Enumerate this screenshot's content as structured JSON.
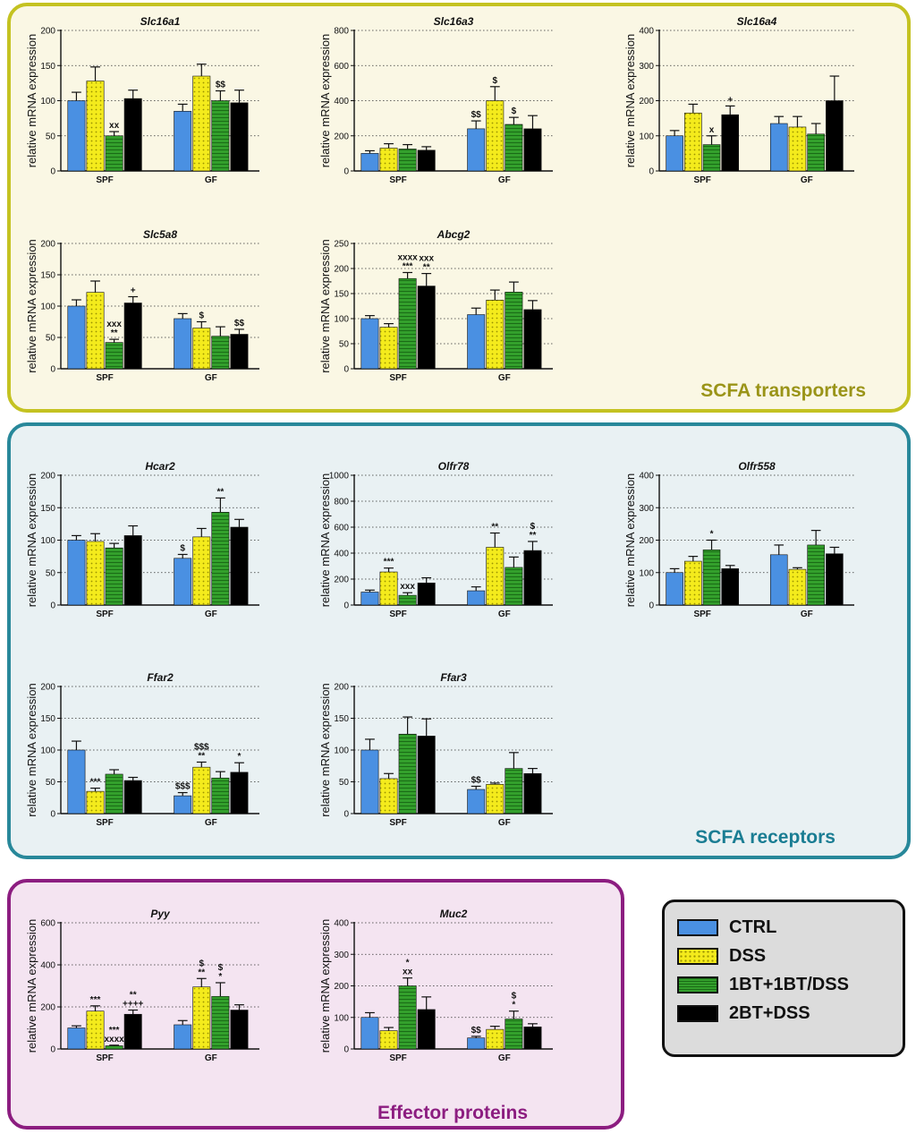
{
  "groups": [
    {
      "label": "SCFA transporters",
      "color": "#c4c221"
    },
    {
      "label": "SCFA receptors",
      "color": "#28889a"
    },
    {
      "label": "Effector proteins",
      "color": "#8c1d80"
    }
  ],
  "legend": [
    {
      "label": "CTRL",
      "color": "#4a90e2",
      "pattern": "solid"
    },
    {
      "label": "DSS",
      "color": "#f4eb1c",
      "pattern": "dots"
    },
    {
      "label": "1BT+1BT/DSS",
      "color": "#33a02c",
      "pattern": "stripes"
    },
    {
      "label": "2BT+DSS",
      "color": "#000000",
      "pattern": "solid"
    }
  ],
  "chart_data": [
    {
      "type": "bar",
      "title": "Slc16a1",
      "ylabel": "relative mRNA expression",
      "ylim": [
        0,
        200
      ],
      "yticks": [
        0,
        50,
        100,
        150,
        200
      ],
      "categories": [
        "SPF",
        "GF"
      ],
      "series": [
        {
          "name": "CTRL",
          "values": [
            100,
            85
          ],
          "errors": [
            12,
            10
          ],
          "annotations": [
            "",
            ""
          ]
        },
        {
          "name": "DSS",
          "values": [
            128,
            135
          ],
          "errors": [
            20,
            17
          ],
          "annotations": [
            "",
            ""
          ]
        },
        {
          "name": "1BT+1BT/DSS",
          "values": [
            50,
            100
          ],
          "errors": [
            6,
            14
          ],
          "annotations": [
            "xx",
            "$$"
          ]
        },
        {
          "name": "2BT+DSS",
          "values": [
            103,
            97
          ],
          "errors": [
            12,
            18
          ],
          "annotations": [
            "",
            ""
          ]
        }
      ]
    },
    {
      "type": "bar",
      "title": "Slc16a3",
      "ylabel": "relative mRNA expression",
      "ylim": [
        0,
        800
      ],
      "yticks": [
        0,
        200,
        400,
        600,
        800
      ],
      "categories": [
        "SPF",
        "GF"
      ],
      "series": [
        {
          "name": "CTRL",
          "values": [
            100,
            240
          ],
          "errors": [
            15,
            45
          ],
          "annotations": [
            "",
            "$$"
          ]
        },
        {
          "name": "DSS",
          "values": [
            130,
            400
          ],
          "errors": [
            25,
            80
          ],
          "annotations": [
            "",
            "$"
          ]
        },
        {
          "name": "1BT+1BT/DSS",
          "values": [
            125,
            265
          ],
          "errors": [
            25,
            40
          ],
          "annotations": [
            "",
            "$"
          ]
        },
        {
          "name": "2BT+DSS",
          "values": [
            118,
            240
          ],
          "errors": [
            20,
            75
          ],
          "annotations": [
            "",
            ""
          ]
        }
      ]
    },
    {
      "type": "bar",
      "title": "Slc16a4",
      "ylabel": "relative mRNA expression",
      "ylim": [
        0,
        400
      ],
      "yticks": [
        0,
        100,
        200,
        300,
        400
      ],
      "categories": [
        "SPF",
        "GF"
      ],
      "series": [
        {
          "name": "CTRL",
          "values": [
            100,
            135
          ],
          "errors": [
            15,
            20
          ],
          "annotations": [
            "",
            ""
          ]
        },
        {
          "name": "DSS",
          "values": [
            165,
            125
          ],
          "errors": [
            25,
            30
          ],
          "annotations": [
            "",
            ""
          ]
        },
        {
          "name": "1BT+1BT/DSS",
          "values": [
            75,
            105
          ],
          "errors": [
            25,
            30
          ],
          "annotations": [
            "x",
            ""
          ]
        },
        {
          "name": "2BT+DSS",
          "values": [
            160,
            200
          ],
          "errors": [
            25,
            70
          ],
          "annotations": [
            "+",
            ""
          ]
        }
      ]
    },
    {
      "type": "bar",
      "title": "Slc5a8",
      "ylabel": "relative mRNA expression",
      "ylim": [
        0,
        200
      ],
      "yticks": [
        0,
        50,
        100,
        150,
        200
      ],
      "categories": [
        "SPF",
        "GF"
      ],
      "series": [
        {
          "name": "CTRL",
          "values": [
            100,
            80
          ],
          "errors": [
            10,
            8
          ],
          "annotations": [
            "",
            ""
          ]
        },
        {
          "name": "DSS",
          "values": [
            122,
            65
          ],
          "errors": [
            18,
            10
          ],
          "annotations": [
            "",
            "$"
          ]
        },
        {
          "name": "1BT+1BT/DSS",
          "values": [
            42,
            52
          ],
          "errors": [
            5,
            15
          ],
          "annotations": [
            "xxx\n**",
            ""
          ]
        },
        {
          "name": "2BT+DSS",
          "values": [
            105,
            55
          ],
          "errors": [
            10,
            8
          ],
          "annotations": [
            "+",
            "$$"
          ]
        }
      ]
    },
    {
      "type": "bar",
      "title": "Abcg2",
      "ylabel": "relative mRNA expression",
      "ylim": [
        0,
        250
      ],
      "yticks": [
        0,
        50,
        100,
        150,
        200,
        250
      ],
      "categories": [
        "SPF",
        "GF"
      ],
      "series": [
        {
          "name": "CTRL",
          "values": [
            100,
            108
          ],
          "errors": [
            6,
            13
          ],
          "annotations": [
            "",
            ""
          ]
        },
        {
          "name": "DSS",
          "values": [
            83,
            137
          ],
          "errors": [
            7,
            20
          ],
          "annotations": [
            "",
            ""
          ]
        },
        {
          "name": "1BT+1BT/DSS",
          "values": [
            180,
            153
          ],
          "errors": [
            12,
            20
          ],
          "annotations": [
            "xxxx\n***",
            ""
          ]
        },
        {
          "name": "2BT+DSS",
          "values": [
            165,
            118
          ],
          "errors": [
            25,
            18
          ],
          "annotations": [
            "xxx\n**",
            ""
          ]
        }
      ]
    },
    {
      "type": "bar",
      "title": "Hcar2",
      "ylabel": "relative mRNA expression",
      "ylim": [
        0,
        200
      ],
      "yticks": [
        0,
        50,
        100,
        150,
        200
      ],
      "categories": [
        "SPF",
        "GF"
      ],
      "series": [
        {
          "name": "CTRL",
          "values": [
            100,
            72
          ],
          "errors": [
            7,
            6
          ],
          "annotations": [
            "",
            "$"
          ]
        },
        {
          "name": "DSS",
          "values": [
            98,
            105
          ],
          "errors": [
            12,
            13
          ],
          "annotations": [
            "",
            ""
          ]
        },
        {
          "name": "1BT+1BT/DSS",
          "values": [
            88,
            143
          ],
          "errors": [
            7,
            22
          ],
          "annotations": [
            "",
            "**"
          ]
        },
        {
          "name": "2BT+DSS",
          "values": [
            107,
            120
          ],
          "errors": [
            15,
            12
          ],
          "annotations": [
            "",
            ""
          ]
        }
      ]
    },
    {
      "type": "bar",
      "title": "Olfr78",
      "ylabel": "relative mRNA expression",
      "ylim": [
        0,
        1000
      ],
      "yticks": [
        0,
        200,
        400,
        600,
        800,
        1000
      ],
      "categories": [
        "SPF",
        "GF"
      ],
      "series": [
        {
          "name": "CTRL",
          "values": [
            100,
            110
          ],
          "errors": [
            15,
            30
          ],
          "annotations": [
            "",
            ""
          ]
        },
        {
          "name": "DSS",
          "values": [
            255,
            445
          ],
          "errors": [
            30,
            110
          ],
          "annotations": [
            "***",
            "**"
          ]
        },
        {
          "name": "1BT+1BT/DSS",
          "values": [
            75,
            290
          ],
          "errors": [
            20,
            80
          ],
          "annotations": [
            "xxx",
            ""
          ]
        },
        {
          "name": "2BT+DSS",
          "values": [
            170,
            420
          ],
          "errors": [
            40,
            70
          ],
          "annotations": [
            "",
            "$\n**"
          ]
        }
      ]
    },
    {
      "type": "bar",
      "title": "Olfr558",
      "ylabel": "relative mRNA expression",
      "ylim": [
        0,
        400
      ],
      "yticks": [
        0,
        100,
        200,
        300,
        400
      ],
      "categories": [
        "SPF",
        "GF"
      ],
      "series": [
        {
          "name": "CTRL",
          "values": [
            100,
            155
          ],
          "errors": [
            12,
            30
          ],
          "annotations": [
            "",
            ""
          ]
        },
        {
          "name": "DSS",
          "values": [
            135,
            110
          ],
          "errors": [
            15,
            5
          ],
          "annotations": [
            "",
            ""
          ]
        },
        {
          "name": "1BT+1BT/DSS",
          "values": [
            170,
            185
          ],
          "errors": [
            30,
            45
          ],
          "annotations": [
            "*",
            ""
          ]
        },
        {
          "name": "2BT+DSS",
          "values": [
            112,
            158
          ],
          "errors": [
            10,
            20
          ],
          "annotations": [
            "",
            ""
          ]
        }
      ]
    },
    {
      "type": "bar",
      "title": "Ffar2",
      "ylabel": "relative mRNA expression",
      "ylim": [
        0,
        200
      ],
      "yticks": [
        0,
        50,
        100,
        150,
        200
      ],
      "categories": [
        "SPF",
        "GF"
      ],
      "series": [
        {
          "name": "CTRL",
          "values": [
            100,
            28
          ],
          "errors": [
            14,
            5
          ],
          "annotations": [
            "",
            "$$$"
          ]
        },
        {
          "name": "DSS",
          "values": [
            35,
            73
          ],
          "errors": [
            5,
            8
          ],
          "annotations": [
            "***",
            "$$$\n**"
          ]
        },
        {
          "name": "1BT+1BT/DSS",
          "values": [
            62,
            56
          ],
          "errors": [
            7,
            10
          ],
          "annotations": [
            "",
            ""
          ]
        },
        {
          "name": "2BT+DSS",
          "values": [
            52,
            65
          ],
          "errors": [
            5,
            15
          ],
          "annotations": [
            "",
            "*"
          ]
        }
      ]
    },
    {
      "type": "bar",
      "title": "Ffar3",
      "ylabel": "relative mRNA expression",
      "ylim": [
        0,
        200
      ],
      "yticks": [
        0,
        50,
        100,
        150,
        200
      ],
      "categories": [
        "SPF",
        "GF"
      ],
      "series": [
        {
          "name": "CTRL",
          "values": [
            100,
            38
          ],
          "errors": [
            17,
            5
          ],
          "annotations": [
            "",
            "$$"
          ]
        },
        {
          "name": "DSS",
          "values": [
            55,
            46
          ],
          "errors": [
            8,
            2
          ],
          "annotations": [
            "",
            ""
          ]
        },
        {
          "name": "1BT+1BT/DSS",
          "values": [
            125,
            71
          ],
          "errors": [
            27,
            25
          ],
          "annotations": [
            "",
            ""
          ]
        },
        {
          "name": "2BT+DSS",
          "values": [
            122,
            63
          ],
          "errors": [
            27,
            8
          ],
          "annotations": [
            "",
            ""
          ]
        }
      ]
    },
    {
      "type": "bar",
      "title": "Pyy",
      "ylabel": "relative mRNA expression",
      "ylim": [
        0,
        600
      ],
      "yticks": [
        0,
        200,
        400,
        600
      ],
      "categories": [
        "SPF",
        "GF"
      ],
      "series": [
        {
          "name": "CTRL",
          "values": [
            100,
            115
          ],
          "errors": [
            10,
            20
          ],
          "annotations": [
            "",
            ""
          ]
        },
        {
          "name": "DSS",
          "values": [
            180,
            295
          ],
          "errors": [
            25,
            40
          ],
          "annotations": [
            "***",
            "$\n**"
          ]
        },
        {
          "name": "1BT+1BT/DSS",
          "values": [
            15,
            250
          ],
          "errors": [
            3,
            65
          ],
          "annotations": [
            "***\nxxxx",
            "$\n*"
          ]
        },
        {
          "name": "2BT+DSS",
          "values": [
            165,
            185
          ],
          "errors": [
            20,
            25
          ],
          "annotations": [
            "**\n++++",
            ""
          ]
        }
      ]
    },
    {
      "type": "bar",
      "title": "Muc2",
      "ylabel": "relative mRNA expression",
      "ylim": [
        0,
        400
      ],
      "yticks": [
        0,
        100,
        200,
        300,
        400
      ],
      "categories": [
        "SPF",
        "GF"
      ],
      "series": [
        {
          "name": "CTRL",
          "values": [
            100,
            35
          ],
          "errors": [
            15,
            5
          ],
          "annotations": [
            "",
            "$$"
          ]
        },
        {
          "name": "DSS",
          "values": [
            58,
            62
          ],
          "errors": [
            10,
            10
          ],
          "annotations": [
            "",
            ""
          ]
        },
        {
          "name": "1BT+1BT/DSS",
          "values": [
            200,
            95
          ],
          "errors": [
            25,
            25
          ],
          "annotations": [
            "*\nxx",
            "$\n*"
          ]
        },
        {
          "name": "2BT+DSS",
          "values": [
            125,
            70
          ],
          "errors": [
            40,
            10
          ],
          "annotations": [
            "",
            ""
          ]
        }
      ]
    }
  ]
}
